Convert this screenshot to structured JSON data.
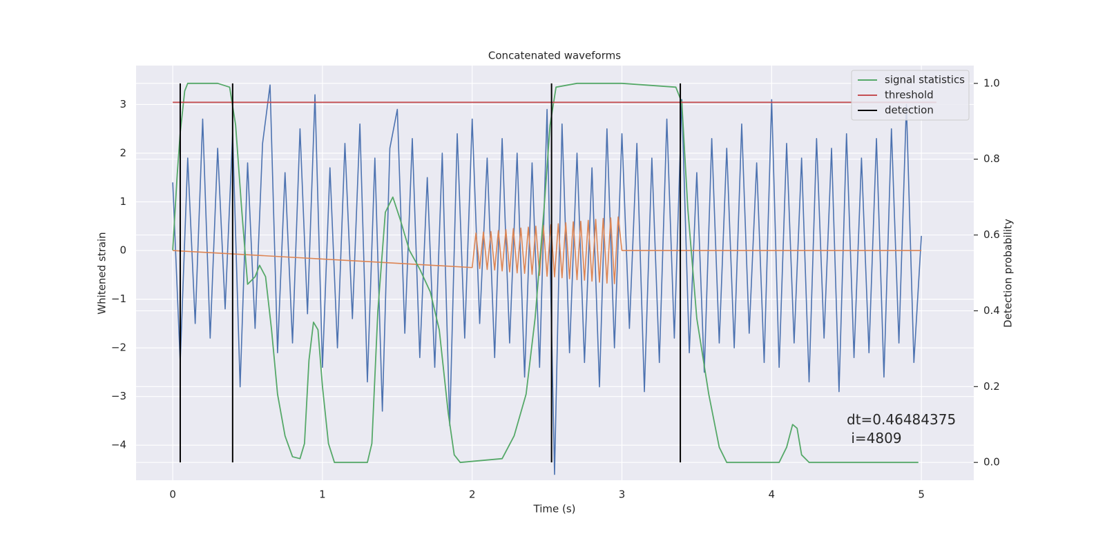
{
  "chart_data": {
    "type": "line",
    "title": "Concatenated waveforms",
    "xlabel": "Time (s)",
    "ylabel": "Whitened strain",
    "y2label": "Detection probability",
    "annotation": "dt=0.46484375\n i=4809",
    "xlim": [
      -0.245,
      5.35
    ],
    "ylim": [
      -4.72,
      3.8
    ],
    "y2lim": [
      -0.047,
      1.047
    ],
    "xticks": [
      0,
      1,
      2,
      3,
      4,
      5
    ],
    "yticks": [
      {
        "value": -4,
        "label": "−4"
      },
      {
        "value": -3,
        "label": "−3"
      },
      {
        "value": -2,
        "label": "−2"
      },
      {
        "value": -1,
        "label": "−1"
      },
      0,
      1,
      2,
      3
    ],
    "y2ticks": [
      {
        "value": 0,
        "label": "0.0"
      },
      0.2,
      0.4,
      0.6,
      0.8,
      {
        "value": 1,
        "label": "1.0"
      }
    ],
    "grid": true,
    "legend": "upper right",
    "series": [
      {
        "color": "#4c72b0",
        "x": [
          0,
          0.05,
          0.1,
          0.15,
          0.2,
          0.25,
          0.3,
          0.35,
          0.4,
          0.45,
          0.5,
          0.55,
          0.6,
          0.65,
          0.7,
          0.75,
          0.8,
          0.85,
          0.9,
          0.95,
          1,
          1.05,
          1.1,
          1.15,
          1.2,
          1.25,
          1.3,
          1.35,
          1.4,
          1.45,
          1.5,
          1.55,
          1.6,
          1.65,
          1.7,
          1.75,
          1.8,
          1.85,
          1.9,
          1.95,
          2,
          2.05,
          2.1,
          2.15,
          2.2,
          2.25,
          2.3,
          2.35,
          2.4,
          2.45,
          2.5,
          2.55,
          2.6,
          2.65,
          2.7,
          2.75,
          2.8,
          2.85,
          2.9,
          2.95,
          3,
          3.05,
          3.1,
          3.15,
          3.2,
          3.25,
          3.3,
          3.35,
          3.4,
          3.45,
          3.5,
          3.55,
          3.6,
          3.65,
          3.7,
          3.75,
          3.8,
          3.85,
          3.9,
          3.95,
          4,
          4.05,
          4.1,
          4.15,
          4.2,
          4.25,
          4.3,
          4.35,
          4.4,
          4.45,
          4.5,
          4.55,
          4.6,
          4.65,
          4.7,
          4.75,
          4.8,
          4.85,
          4.9,
          4.95,
          5
        ],
        "values": [
          1.4,
          -2.3,
          1.9,
          -1.5,
          2.7,
          -1.8,
          2.1,
          -1.2,
          2.4,
          -2.8,
          1.8,
          -1.6,
          2.2,
          3.4,
          -2.1,
          1.6,
          -1.9,
          2.5,
          -1.3,
          3.2,
          -2.4,
          1.7,
          -2.0,
          2.2,
          -1.4,
          2.6,
          -2.7,
          1.9,
          -3.3,
          2.1,
          2.9,
          -1.7,
          2.3,
          -2.2,
          1.5,
          -2.4,
          2.0,
          -3.6,
          2.4,
          -1.8,
          2.7,
          -1.5,
          1.9,
          -2.2,
          2.3,
          -1.9,
          2.0,
          -2.6,
          1.8,
          -2.4,
          2.9,
          -4.6,
          2.6,
          -2.1,
          2.0,
          -2.3,
          1.7,
          -2.8,
          2.5,
          -2.0,
          2.4,
          -1.6,
          2.2,
          -2.9,
          1.9,
          -2.3,
          2.7,
          -1.8,
          3.1,
          -2.1,
          1.6,
          -2.5,
          2.3,
          -1.9,
          2.1,
          -2.0,
          2.6,
          -1.7,
          1.8,
          -2.3,
          3.1,
          -2.4,
          2.2,
          -1.9,
          1.9,
          -2.7,
          2.3,
          -1.8,
          2.1,
          -2.9,
          2.4,
          -2.2,
          1.9,
          -2.1,
          2.3,
          -2.6,
          2.5,
          -1.9,
          3.0,
          -2.3,
          0.3
        ]
      },
      {
        "color": "#dd8452",
        "x": [
          0,
          2.0,
          2.025,
          2.05,
          2.075,
          2.1,
          2.125,
          2.15,
          2.175,
          2.2,
          2.225,
          2.25,
          2.275,
          2.3,
          2.325,
          2.35,
          2.375,
          2.4,
          2.425,
          2.45,
          2.475,
          2.5,
          2.525,
          2.55,
          2.575,
          2.6,
          2.625,
          2.65,
          2.675,
          2.7,
          2.725,
          2.75,
          2.775,
          2.8,
          2.825,
          2.85,
          2.875,
          2.9,
          2.925,
          2.95,
          2.975,
          3.0,
          5
        ],
        "values": [
          0,
          -0.35,
          0.36,
          -0.37,
          0.38,
          -0.39,
          0.39,
          -0.4,
          0.41,
          -0.42,
          0.43,
          -0.44,
          0.45,
          -0.46,
          0.46,
          -0.47,
          0.48,
          -0.49,
          0.5,
          -0.51,
          0.52,
          -0.53,
          0.53,
          -0.54,
          0.55,
          -0.56,
          0.57,
          -0.58,
          0.59,
          -0.6,
          0.6,
          -0.61,
          0.62,
          -0.63,
          0.64,
          -0.65,
          0.66,
          -0.67,
          0.67,
          -0.68,
          0.69,
          0,
          0
        ]
      },
      {
        "name": "signal statistics",
        "color": "#55a868",
        "axis": "y2",
        "x": [
          0,
          0.03,
          0.05,
          0.08,
          0.1,
          0.3,
          0.38,
          0.42,
          0.46,
          0.5,
          0.55,
          0.58,
          0.62,
          0.66,
          0.7,
          0.75,
          0.8,
          0.85,
          0.88,
          0.91,
          0.94,
          0.97,
          1.0,
          1.04,
          1.08,
          1.3,
          1.33,
          1.37,
          1.42,
          1.47,
          1.52,
          1.58,
          1.65,
          1.72,
          1.78,
          1.84,
          1.88,
          1.92,
          2.2,
          2.28,
          2.36,
          2.42,
          2.48,
          2.52,
          2.56,
          2.7,
          3.0,
          3.36,
          3.4,
          3.44,
          3.5,
          3.58,
          3.65,
          3.7,
          4.05,
          4.1,
          4.14,
          4.17,
          4.2,
          4.25,
          4.98
        ],
        "values": [
          0.56,
          0.76,
          0.87,
          0.98,
          1.0,
          1.0,
          0.99,
          0.89,
          0.67,
          0.47,
          0.49,
          0.52,
          0.49,
          0.35,
          0.18,
          0.07,
          0.015,
          0.01,
          0.05,
          0.27,
          0.37,
          0.35,
          0.2,
          0.05,
          0.0,
          0.0,
          0.05,
          0.4,
          0.66,
          0.7,
          0.64,
          0.56,
          0.51,
          0.45,
          0.35,
          0.13,
          0.02,
          0.0,
          0.01,
          0.07,
          0.18,
          0.38,
          0.67,
          0.89,
          0.99,
          1.0,
          1.0,
          0.99,
          0.95,
          0.67,
          0.38,
          0.18,
          0.04,
          0.0,
          0.0,
          0.04,
          0.1,
          0.09,
          0.02,
          0.0,
          0.0
        ]
      },
      {
        "name": "threshold",
        "color": "#c44e52",
        "axis": "y2",
        "x": [
          0,
          5.1
        ],
        "values": [
          0.95,
          0.95
        ]
      },
      {
        "name": "detection",
        "color": "#000000",
        "axis": "y2",
        "kind": "vlines",
        "x": [
          0.05,
          0.4,
          2.53,
          3.39
        ],
        "ymin": 0,
        "ymax": 1
      }
    ]
  }
}
